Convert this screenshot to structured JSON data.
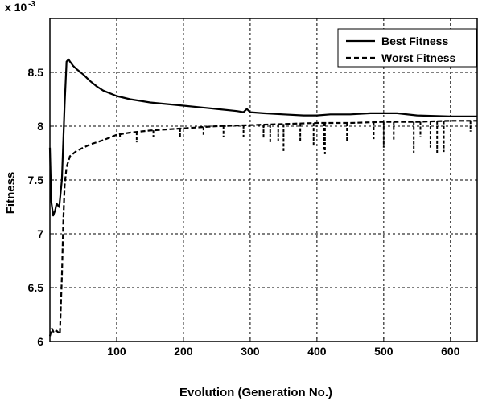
{
  "chart_data": {
    "type": "line",
    "xlabel": "Evolution (Generation No.)",
    "ylabel": "Fitness",
    "y_multiplier_base": "x 10",
    "y_multiplier_exp": "-3",
    "xlim": [
      0,
      640
    ],
    "ylim": [
      6,
      9
    ],
    "x_ticks": [
      100,
      200,
      300,
      400,
      500,
      600
    ],
    "y_ticks": [
      6,
      6.5,
      7,
      7.5,
      8,
      8.5
    ],
    "grid": true,
    "legend_position": "top-right",
    "series": [
      {
        "name": "Best Fitness",
        "style": "solid",
        "x": [
          0,
          2,
          5,
          8,
          10,
          14,
          18,
          22,
          25,
          28,
          30,
          35,
          40,
          50,
          60,
          70,
          80,
          100,
          120,
          150,
          200,
          250,
          280,
          290,
          295,
          300,
          320,
          350,
          380,
          400,
          420,
          450,
          480,
          500,
          520,
          550,
          600,
          640
        ],
        "values": [
          7.8,
          7.3,
          7.17,
          7.22,
          7.28,
          7.25,
          7.5,
          8.2,
          8.6,
          8.62,
          8.6,
          8.56,
          8.53,
          8.48,
          8.42,
          8.37,
          8.33,
          8.28,
          8.25,
          8.22,
          8.19,
          8.16,
          8.14,
          8.13,
          8.16,
          8.13,
          8.12,
          8.11,
          8.1,
          8.1,
          8.11,
          8.11,
          8.12,
          8.12,
          8.12,
          8.1,
          8.09,
          8.09
        ]
      },
      {
        "name": "Worst Fitness",
        "style": "dashed",
        "x": [
          0,
          3,
          6,
          10,
          15,
          18,
          20,
          22,
          25,
          28,
          30,
          40,
          50,
          60,
          80,
          100,
          120,
          150,
          200,
          250,
          300,
          350,
          400,
          450,
          500,
          550,
          600,
          640
        ],
        "values": [
          6.05,
          6.12,
          6.08,
          6.1,
          6.07,
          6.6,
          7.1,
          7.45,
          7.62,
          7.68,
          7.72,
          7.77,
          7.8,
          7.83,
          7.87,
          7.92,
          7.94,
          7.96,
          7.98,
          8.0,
          8.01,
          8.02,
          8.03,
          8.03,
          8.04,
          8.04,
          8.05,
          8.05
        ]
      },
      {
        "name": "",
        "style": "dashed-spikes",
        "x": [
          105,
          130,
          155,
          195,
          230,
          260,
          290,
          320,
          330,
          342,
          350,
          375,
          395,
          410,
          412,
          445,
          485,
          500,
          515,
          545,
          555,
          570,
          580,
          590,
          630
        ],
        "values": [
          7.88,
          7.85,
          7.9,
          7.9,
          7.92,
          7.9,
          7.9,
          7.88,
          7.84,
          7.86,
          7.77,
          7.86,
          7.82,
          7.78,
          7.74,
          7.86,
          7.88,
          7.8,
          7.86,
          7.75,
          7.9,
          7.8,
          7.75,
          7.76,
          7.95
        ]
      }
    ]
  }
}
